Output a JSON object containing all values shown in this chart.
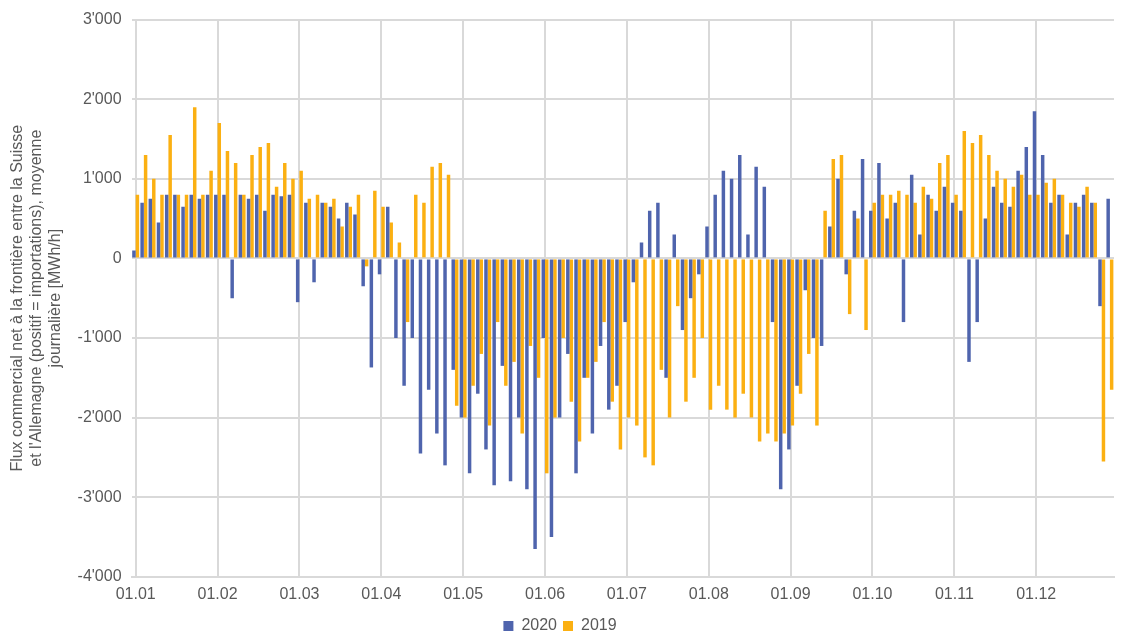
{
  "chart_data": {
    "type": "bar",
    "ylabel": "Flux commercial net à la frontière entre la Suisse et l'Allemagne (positif = importations), moyenne journalière [MWh/h]",
    "categories": [
      "01.01",
      null,
      null,
      null,
      null,
      null,
      null,
      null,
      null,
      null,
      "01.02",
      null,
      null,
      null,
      null,
      null,
      null,
      null,
      null,
      null,
      "01.03",
      null,
      null,
      null,
      null,
      null,
      null,
      null,
      null,
      null,
      "01.04",
      null,
      null,
      null,
      null,
      null,
      null,
      null,
      null,
      null,
      "01.05",
      null,
      null,
      null,
      null,
      null,
      null,
      null,
      null,
      null,
      "01.06",
      null,
      null,
      null,
      null,
      null,
      null,
      null,
      null,
      null,
      "01.07",
      null,
      null,
      null,
      null,
      null,
      null,
      null,
      null,
      null,
      "01.08",
      null,
      null,
      null,
      null,
      null,
      null,
      null,
      null,
      null,
      "01.09",
      null,
      null,
      null,
      null,
      null,
      null,
      null,
      null,
      null,
      "01.10",
      null,
      null,
      null,
      null,
      null,
      null,
      null,
      null,
      null,
      "01.11",
      null,
      null,
      null,
      null,
      null,
      null,
      null,
      null,
      null,
      "01.12",
      null,
      null,
      null,
      null,
      null,
      null,
      null,
      null,
      null
    ],
    "series": [
      {
        "name": "2020",
        "color": "#4f64ad",
        "values": [
          100,
          700,
          750,
          450,
          800,
          800,
          650,
          800,
          750,
          800,
          800,
          800,
          -500,
          800,
          750,
          800,
          600,
          800,
          780,
          800,
          -550,
          700,
          -300,
          700,
          650,
          500,
          700,
          550,
          -350,
          -1370,
          -200,
          650,
          -1000,
          -1600,
          -1000,
          -2450,
          -1650,
          -2200,
          -2600,
          -1400,
          -2000,
          -2700,
          -1700,
          -2400,
          -2850,
          -1350,
          -2800,
          -2000,
          -2900,
          -3650,
          -1000,
          -3500,
          -2000,
          -1200,
          -2700,
          -1500,
          -2200,
          -1100,
          -1900,
          -1600,
          -800,
          -300,
          200,
          600,
          700,
          -1500,
          300,
          -900,
          -500,
          -200,
          400,
          800,
          1100,
          1000,
          1300,
          300,
          1150,
          900,
          -800,
          -2900,
          -2400,
          -1600,
          -400,
          -1000,
          -1100,
          400,
          1000,
          -200,
          600,
          1250,
          600,
          1200,
          500,
          700,
          -800,
          1050,
          300,
          800,
          600,
          900,
          700,
          600,
          -1300,
          -800,
          500,
          900,
          700,
          650,
          1100,
          1400,
          1850,
          1300,
          700,
          800,
          300,
          700,
          800,
          700,
          -600,
          750
        ]
      },
      {
        "name": "2019",
        "color": "#fbb012",
        "values": [
          800,
          1300,
          1000,
          800,
          1550,
          800,
          800,
          1900,
          800,
          1100,
          1700,
          1350,
          1200,
          800,
          1300,
          1400,
          1450,
          900,
          1200,
          1000,
          1100,
          750,
          800,
          700,
          750,
          400,
          650,
          800,
          -100,
          850,
          650,
          450,
          200,
          -800,
          800,
          700,
          1150,
          1200,
          1050,
          -1850,
          -2000,
          -1600,
          -1200,
          -2100,
          -800,
          -1600,
          -1300,
          -2200,
          -1100,
          -1500,
          -2700,
          -2000,
          -1000,
          -1800,
          -2300,
          -1500,
          -1300,
          -800,
          -1800,
          -2400,
          -2000,
          -2100,
          -2500,
          -2600,
          -1400,
          -2000,
          -600,
          -1800,
          -1500,
          -1000,
          -1900,
          -1600,
          -1900,
          -2000,
          -1700,
          -2000,
          -2300,
          -2200,
          -2300,
          -2200,
          -2100,
          -1700,
          -1200,
          -2100,
          600,
          1250,
          1300,
          -700,
          500,
          -900,
          700,
          800,
          800,
          850,
          800,
          700,
          900,
          750,
          1200,
          1300,
          800,
          1600,
          1450,
          1550,
          1300,
          1100,
          1000,
          900,
          1050,
          800,
          800,
          950,
          1000,
          800,
          700,
          650,
          900,
          700,
          -2550,
          -1650
        ]
      }
    ],
    "ylim": [
      -4000,
      3000
    ],
    "yticks": [
      {
        "value": -4000,
        "label": "-4'000"
      },
      {
        "value": -3000,
        "label": "-3'000"
      },
      {
        "value": -2000,
        "label": "-2'000"
      },
      {
        "value": -1000,
        "label": "-1'000"
      },
      0,
      {
        "value": 1000,
        "label": "1'000"
      },
      {
        "value": 2000,
        "label": "2'000"
      },
      {
        "value": 3000,
        "label": "3'000"
      }
    ],
    "grid": true,
    "legend": "bottom"
  }
}
